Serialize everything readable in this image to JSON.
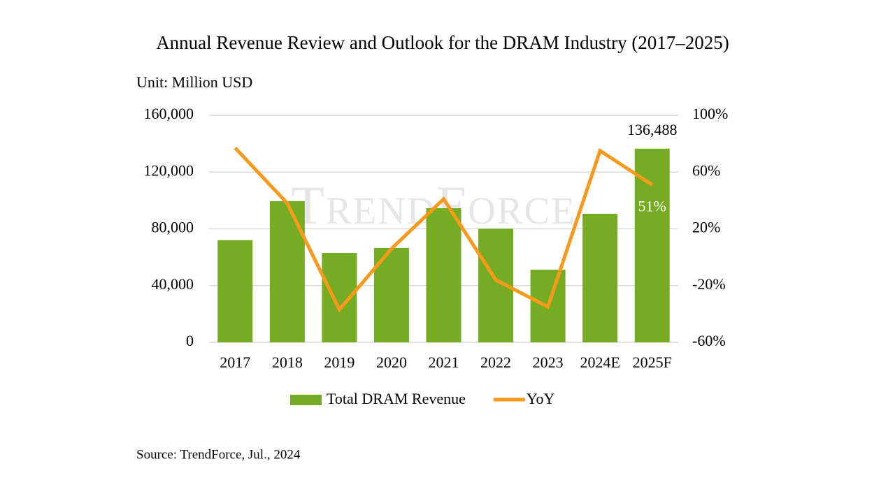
{
  "chart_data": {
    "type": "bar_line",
    "title": "Annual Revenue Review and Outlook for the DRAM Industry (2017–2025)",
    "subtitle": "Unit: Million USD",
    "source": "Source: TrendForce, Jul., 2024",
    "watermark": "TrendForce",
    "categories": [
      "2017",
      "2018",
      "2019",
      "2020",
      "2021",
      "2022",
      "2023",
      "2024E",
      "2025F"
    ],
    "series": [
      {
        "name": "Total DRAM Revenue",
        "color": "#75ac23",
        "type": "bar",
        "values": [
          72000,
          99500,
          63000,
          66500,
          94500,
          80000,
          51200,
          90600,
          136488
        ],
        "value_labels": [
          null,
          null,
          null,
          null,
          null,
          null,
          null,
          null,
          "136,488"
        ]
      },
      {
        "name": "YoY",
        "color": "#f79a1b",
        "type": "line",
        "axis": "y2",
        "values": [
          77,
          38,
          -37,
          6,
          41,
          -16,
          -35,
          75,
          51
        ],
        "value_labels": [
          null,
          null,
          null,
          null,
          null,
          null,
          null,
          null,
          "51%"
        ]
      }
    ],
    "ylim": [
      0,
      160000
    ],
    "yticks": [
      0,
      {
        "value": 40000,
        "label": "40,000"
      },
      {
        "value": 80000,
        "label": "80,000"
      },
      {
        "value": 120000,
        "label": "120,000"
      },
      {
        "value": 160000,
        "label": "160,000"
      }
    ],
    "y2lim": [
      -60,
      100
    ],
    "y2ticks": [
      {
        "value": -60,
        "label": "-60%"
      },
      {
        "value": -20,
        "label": "-20%"
      },
      {
        "value": 20,
        "label": "20%"
      },
      {
        "value": 60,
        "label": "60%"
      },
      {
        "value": 100,
        "label": "100%"
      }
    ],
    "grid": true,
    "legend": "bottom"
  }
}
